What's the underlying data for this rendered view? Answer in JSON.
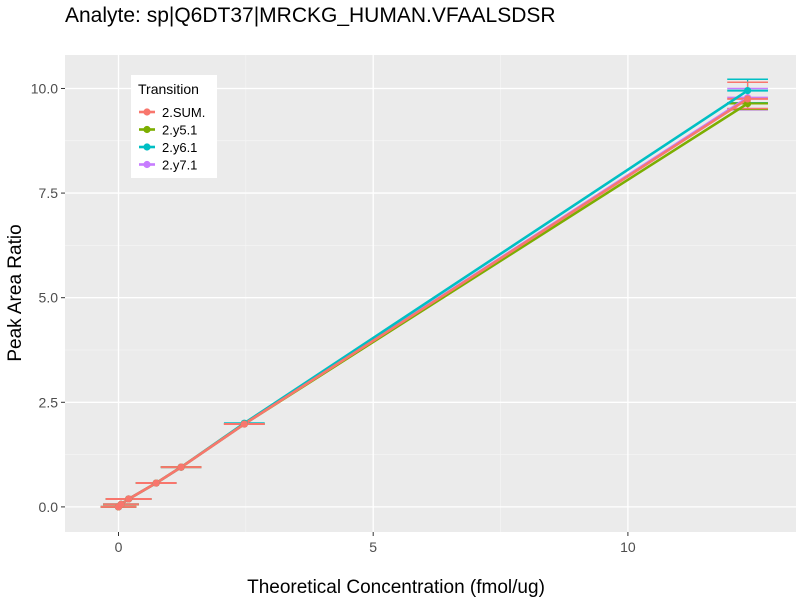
{
  "chart_data": {
    "type": "line",
    "title": "Analyte: sp|Q6DT37|MRCKG_HUMAN.VFAALSDSR",
    "xlabel": "Theoretical Concentration (fmol/ug)",
    "ylabel": "Peak Area Ratio",
    "xlim": [
      -1.05,
      13.3
    ],
    "ylim": [
      -0.6,
      10.8
    ],
    "x_ticks": [
      0,
      5,
      10
    ],
    "x_tick_labels": [
      "0",
      "5",
      "10"
    ],
    "y_ticks": [
      0,
      2.5,
      5,
      7.5,
      10
    ],
    "y_tick_labels": [
      "0.0",
      "2.5",
      "5.0",
      "7.5",
      "10.0"
    ],
    "grid": true,
    "legend": {
      "title": "Transition",
      "position": "top-left"
    },
    "x": [
      0,
      0.05,
      0.2,
      0.74,
      1.23,
      2.47,
      12.35
    ],
    "series": [
      {
        "name": "2.SUM.",
        "color": "#F8766D",
        "values": [
          0.0,
          0.06,
          0.19,
          0.57,
          0.95,
          1.98,
          9.75
        ],
        "error_x": [
          0.35,
          0.35,
          0.45,
          0.4,
          0.4,
          0.4,
          0.4
        ],
        "error_y_low": [
          0.0,
          0.0,
          0.0,
          0.0,
          0.0,
          0.0,
          9.52
        ],
        "error_y_high": [
          0.0,
          0.0,
          0.0,
          0.0,
          0.0,
          0.0,
          10.15
        ]
      },
      {
        "name": "2.y5.1",
        "color": "#7CAE00",
        "values": [
          0.0,
          0.06,
          0.19,
          0.57,
          0.95,
          1.98,
          9.64
        ],
        "error_x": [
          0.35,
          0.35,
          0.45,
          0.4,
          0.4,
          0.4,
          0.4
        ],
        "error_y_low": [
          0.0,
          0.0,
          0.0,
          0.0,
          0.0,
          0.0,
          9.5
        ],
        "error_y_high": [
          0.0,
          0.0,
          0.0,
          0.0,
          0.0,
          0.0,
          9.65
        ]
      },
      {
        "name": "2.y6.1",
        "color": "#00BFC4",
        "values": [
          0.0,
          0.06,
          0.19,
          0.57,
          0.95,
          2.0,
          9.95
        ],
        "error_x": [
          0.35,
          0.35,
          0.45,
          0.4,
          0.4,
          0.4,
          0.4
        ],
        "error_y_low": [
          0.0,
          0.0,
          0.0,
          0.0,
          0.0,
          0.0,
          9.66
        ],
        "error_y_high": [
          0.0,
          0.0,
          0.0,
          0.0,
          0.0,
          0.0,
          10.22
        ]
      },
      {
        "name": "2.y7.1",
        "color": "#C77CFF",
        "values": [
          0.0,
          0.06,
          0.19,
          0.57,
          0.95,
          1.98,
          9.78
        ],
        "error_x": [
          0.35,
          0.35,
          0.45,
          0.4,
          0.4,
          0.4,
          0.4
        ],
        "error_y_low": [
          0.0,
          0.0,
          0.0,
          0.0,
          0.0,
          0.0,
          9.49
        ],
        "error_y_high": [
          0.0,
          0.0,
          0.0,
          0.0,
          0.0,
          0.0,
          10.0
        ]
      }
    ]
  }
}
